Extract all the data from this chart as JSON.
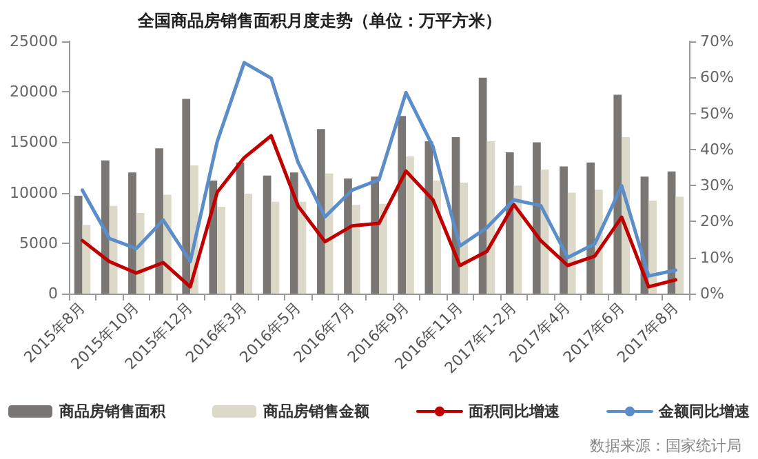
{
  "chart_data": {
    "type": "bar",
    "title": "全国商品房销售面积月度走势（单位：万平方米）",
    "categories": [
      "2015年8月",
      null,
      "2015年10月",
      null,
      "2015年12月",
      null,
      "2016年3月",
      null,
      "2016年5月",
      null,
      "2016年7月",
      null,
      "2016年9月",
      null,
      "2016年11月",
      null,
      "2017年1-2月",
      null,
      "2017年4月",
      null,
      "2017年6月",
      null,
      "2017年8月"
    ],
    "series": [
      {
        "name": "商品房销售面积",
        "color": "#7a7674",
        "values": [
          9700,
          13200,
          12000,
          14400,
          19300,
          11200,
          13000,
          11700,
          12000,
          16300,
          11400,
          11600,
          17600,
          15100,
          15500,
          21400,
          14000,
          15000,
          12600,
          13000,
          19700,
          11600,
          12100
        ]
      },
      {
        "name": "商品房销售金额",
        "color": "#dcd9c8",
        "values": [
          6800,
          8700,
          8000,
          9800,
          12700,
          8600,
          9900,
          9100,
          9100,
          11900,
          8800,
          8900,
          13600,
          11200,
          11000,
          15100,
          10700,
          12300,
          10000,
          10300,
          15500,
          9200,
          9600
        ]
      },
      {
        "name": "面积同比增速",
        "type": "line",
        "axis": "y2",
        "color": "#c00000",
        "values": [
          14.7,
          8.9,
          5.7,
          8.6,
          1.9,
          28.1,
          37.7,
          43.8,
          24.3,
          14.4,
          18.8,
          19.5,
          34.0,
          26.0,
          7.8,
          11.7,
          24.7,
          14.7,
          7.8,
          10.4,
          21.2,
          1.9,
          3.8
        ]
      },
      {
        "name": "金额同比增速",
        "type": "line",
        "axis": "y2",
        "color": "#5b8dc9",
        "values": [
          28.7,
          15.3,
          12.5,
          20.4,
          8.9,
          42.2,
          64.1,
          59.8,
          36.4,
          21.3,
          28.7,
          31.6,
          55.8,
          40.8,
          13.2,
          18.3,
          26.0,
          24.4,
          10.0,
          13.8,
          29.9,
          4.9,
          6.5
        ]
      }
    ],
    "ylim": [
      0,
      25000
    ],
    "yticks": [
      0,
      5000,
      10000,
      15000,
      20000,
      25000
    ],
    "y2lim": [
      0,
      70
    ],
    "y2ticks": [
      {
        "value": 0,
        "label": "0%"
      },
      {
        "value": 10,
        "label": "10%"
      },
      {
        "value": 20,
        "label": "20%"
      },
      {
        "value": 30,
        "label": "30%"
      },
      {
        "value": 40,
        "label": "40%"
      },
      {
        "value": 50,
        "label": "50%"
      },
      {
        "value": 60,
        "label": "60%"
      },
      {
        "value": 70,
        "label": "70%"
      }
    ],
    "grid": false,
    "legend": "bottom",
    "marker": "none",
    "line_style": "solid",
    "annotations": [
      "数据来源：国家统计局"
    ]
  }
}
